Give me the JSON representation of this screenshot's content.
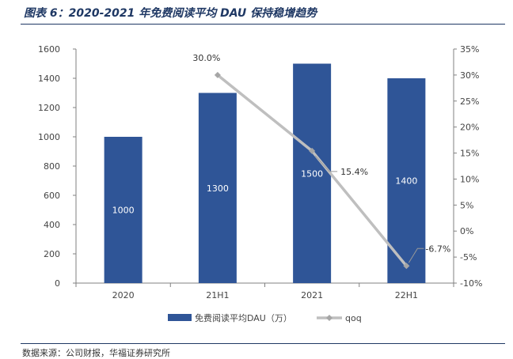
{
  "header": {
    "title": "图表 6：2020-2021 年免费阅读平均 DAU 保持稳增趋势"
  },
  "footer": {
    "source": "数据来源：公司财报，华福证券研究所"
  },
  "colors": {
    "bar": "#2f5597",
    "line": "#bfbfbf",
    "axis": "#808080",
    "title": "#1f3864"
  },
  "chart_data": {
    "type": "bar",
    "categories": [
      "2020",
      "21H1",
      "2021",
      "22H1"
    ],
    "series": [
      {
        "name": "免费阅读平均DAU（万）",
        "type": "bar",
        "axis": "left",
        "values": [
          1000,
          1300,
          1500,
          1400
        ],
        "data_labels": [
          "1000",
          "1300",
          "1500",
          "1400"
        ]
      },
      {
        "name": "qoq",
        "type": "line",
        "axis": "right",
        "values": [
          null,
          30.0,
          15.4,
          -6.7
        ],
        "data_labels": [
          "",
          "30.0%",
          "15.4%",
          "-6.7%"
        ]
      }
    ],
    "ylim_left": [
      0,
      1600
    ],
    "yticks_left": [
      "0",
      "200",
      "400",
      "600",
      "800",
      "1000",
      "1200",
      "1400",
      "1600"
    ],
    "ylim_right": [
      -10,
      35
    ],
    "yticks_right": [
      "-10%",
      "-5%",
      "0%",
      "5%",
      "10%",
      "15%",
      "20%",
      "25%",
      "30%",
      "35%"
    ],
    "grid": false,
    "legend_position": "bottom"
  }
}
